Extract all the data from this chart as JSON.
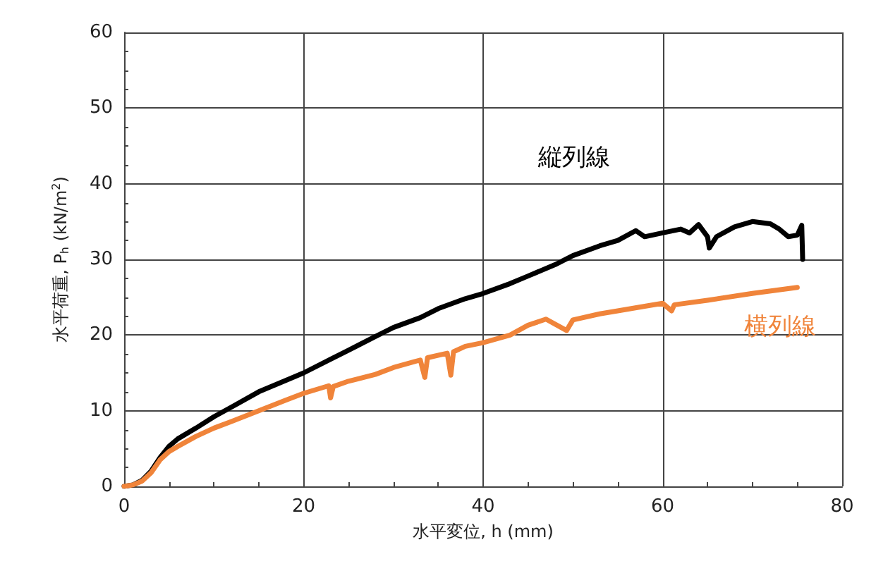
{
  "chart_data": {
    "type": "line",
    "xlabel": "水平変位, h (mm)",
    "ylabel": "水平荷重, P$_{h}$ (kN/m$^{2}$)",
    "xlim": [
      0,
      80
    ],
    "xticks": [
      0,
      20,
      40,
      60,
      80
    ],
    "ylim": [
      0,
      60
    ],
    "yticks": [
      0,
      10,
      20,
      30,
      40,
      50,
      60
    ],
    "grid": true,
    "marker": "none",
    "line_style": "solid",
    "series": [
      {
        "name": "縦列線",
        "color": "#000000",
        "x": [
          0,
          1,
          2,
          3,
          4,
          5,
          6,
          8,
          10,
          12,
          15,
          18,
          20,
          23,
          25,
          28,
          30,
          33,
          35,
          38,
          40,
          43,
          45,
          48,
          50,
          53,
          55,
          57,
          58,
          60,
          62,
          63,
          64,
          65,
          65.2,
          66,
          68,
          70,
          72,
          73,
          74,
          75,
          75.5,
          75.6
        ],
        "values": [
          0,
          0.2,
          0.8,
          2,
          3.8,
          5.3,
          6.3,
          7.7,
          9.2,
          10.5,
          12.5,
          14,
          15,
          16.8,
          18,
          19.8,
          21,
          22.3,
          23.5,
          24.8,
          25.5,
          26.8,
          27.8,
          29.3,
          30.5,
          31.8,
          32.5,
          33.8,
          33,
          33.5,
          34,
          33.5,
          34.6,
          33,
          31.5,
          33,
          34.3,
          35,
          34.7,
          34,
          33,
          33.2,
          34.5,
          30
        ]
      },
      {
        "name": "横列線",
        "color": "#f0843a",
        "x": [
          0,
          1,
          2,
          3,
          4,
          5,
          6,
          8,
          10,
          12,
          15,
          18,
          20,
          22.8,
          23,
          23.3,
          25,
          28,
          30,
          33,
          33.5,
          33.8,
          36,
          36.4,
          36.7,
          38,
          40,
          43,
          45,
          47,
          49.3,
          50,
          53,
          55,
          58,
          60,
          61,
          61.3,
          65,
          70,
          75
        ],
        "values": [
          0,
          0.2,
          0.7,
          1.8,
          3.5,
          4.6,
          5.3,
          6.6,
          7.7,
          8.6,
          10,
          11.4,
          12.3,
          13.3,
          11.7,
          13.2,
          13.9,
          14.8,
          15.7,
          16.7,
          14.4,
          17,
          17.6,
          14.7,
          17.8,
          18.5,
          19,
          20,
          21.3,
          22.1,
          20.6,
          22,
          22.8,
          23.2,
          23.8,
          24.2,
          23.2,
          24,
          24.6,
          25.5,
          26.3
        ]
      }
    ]
  }
}
